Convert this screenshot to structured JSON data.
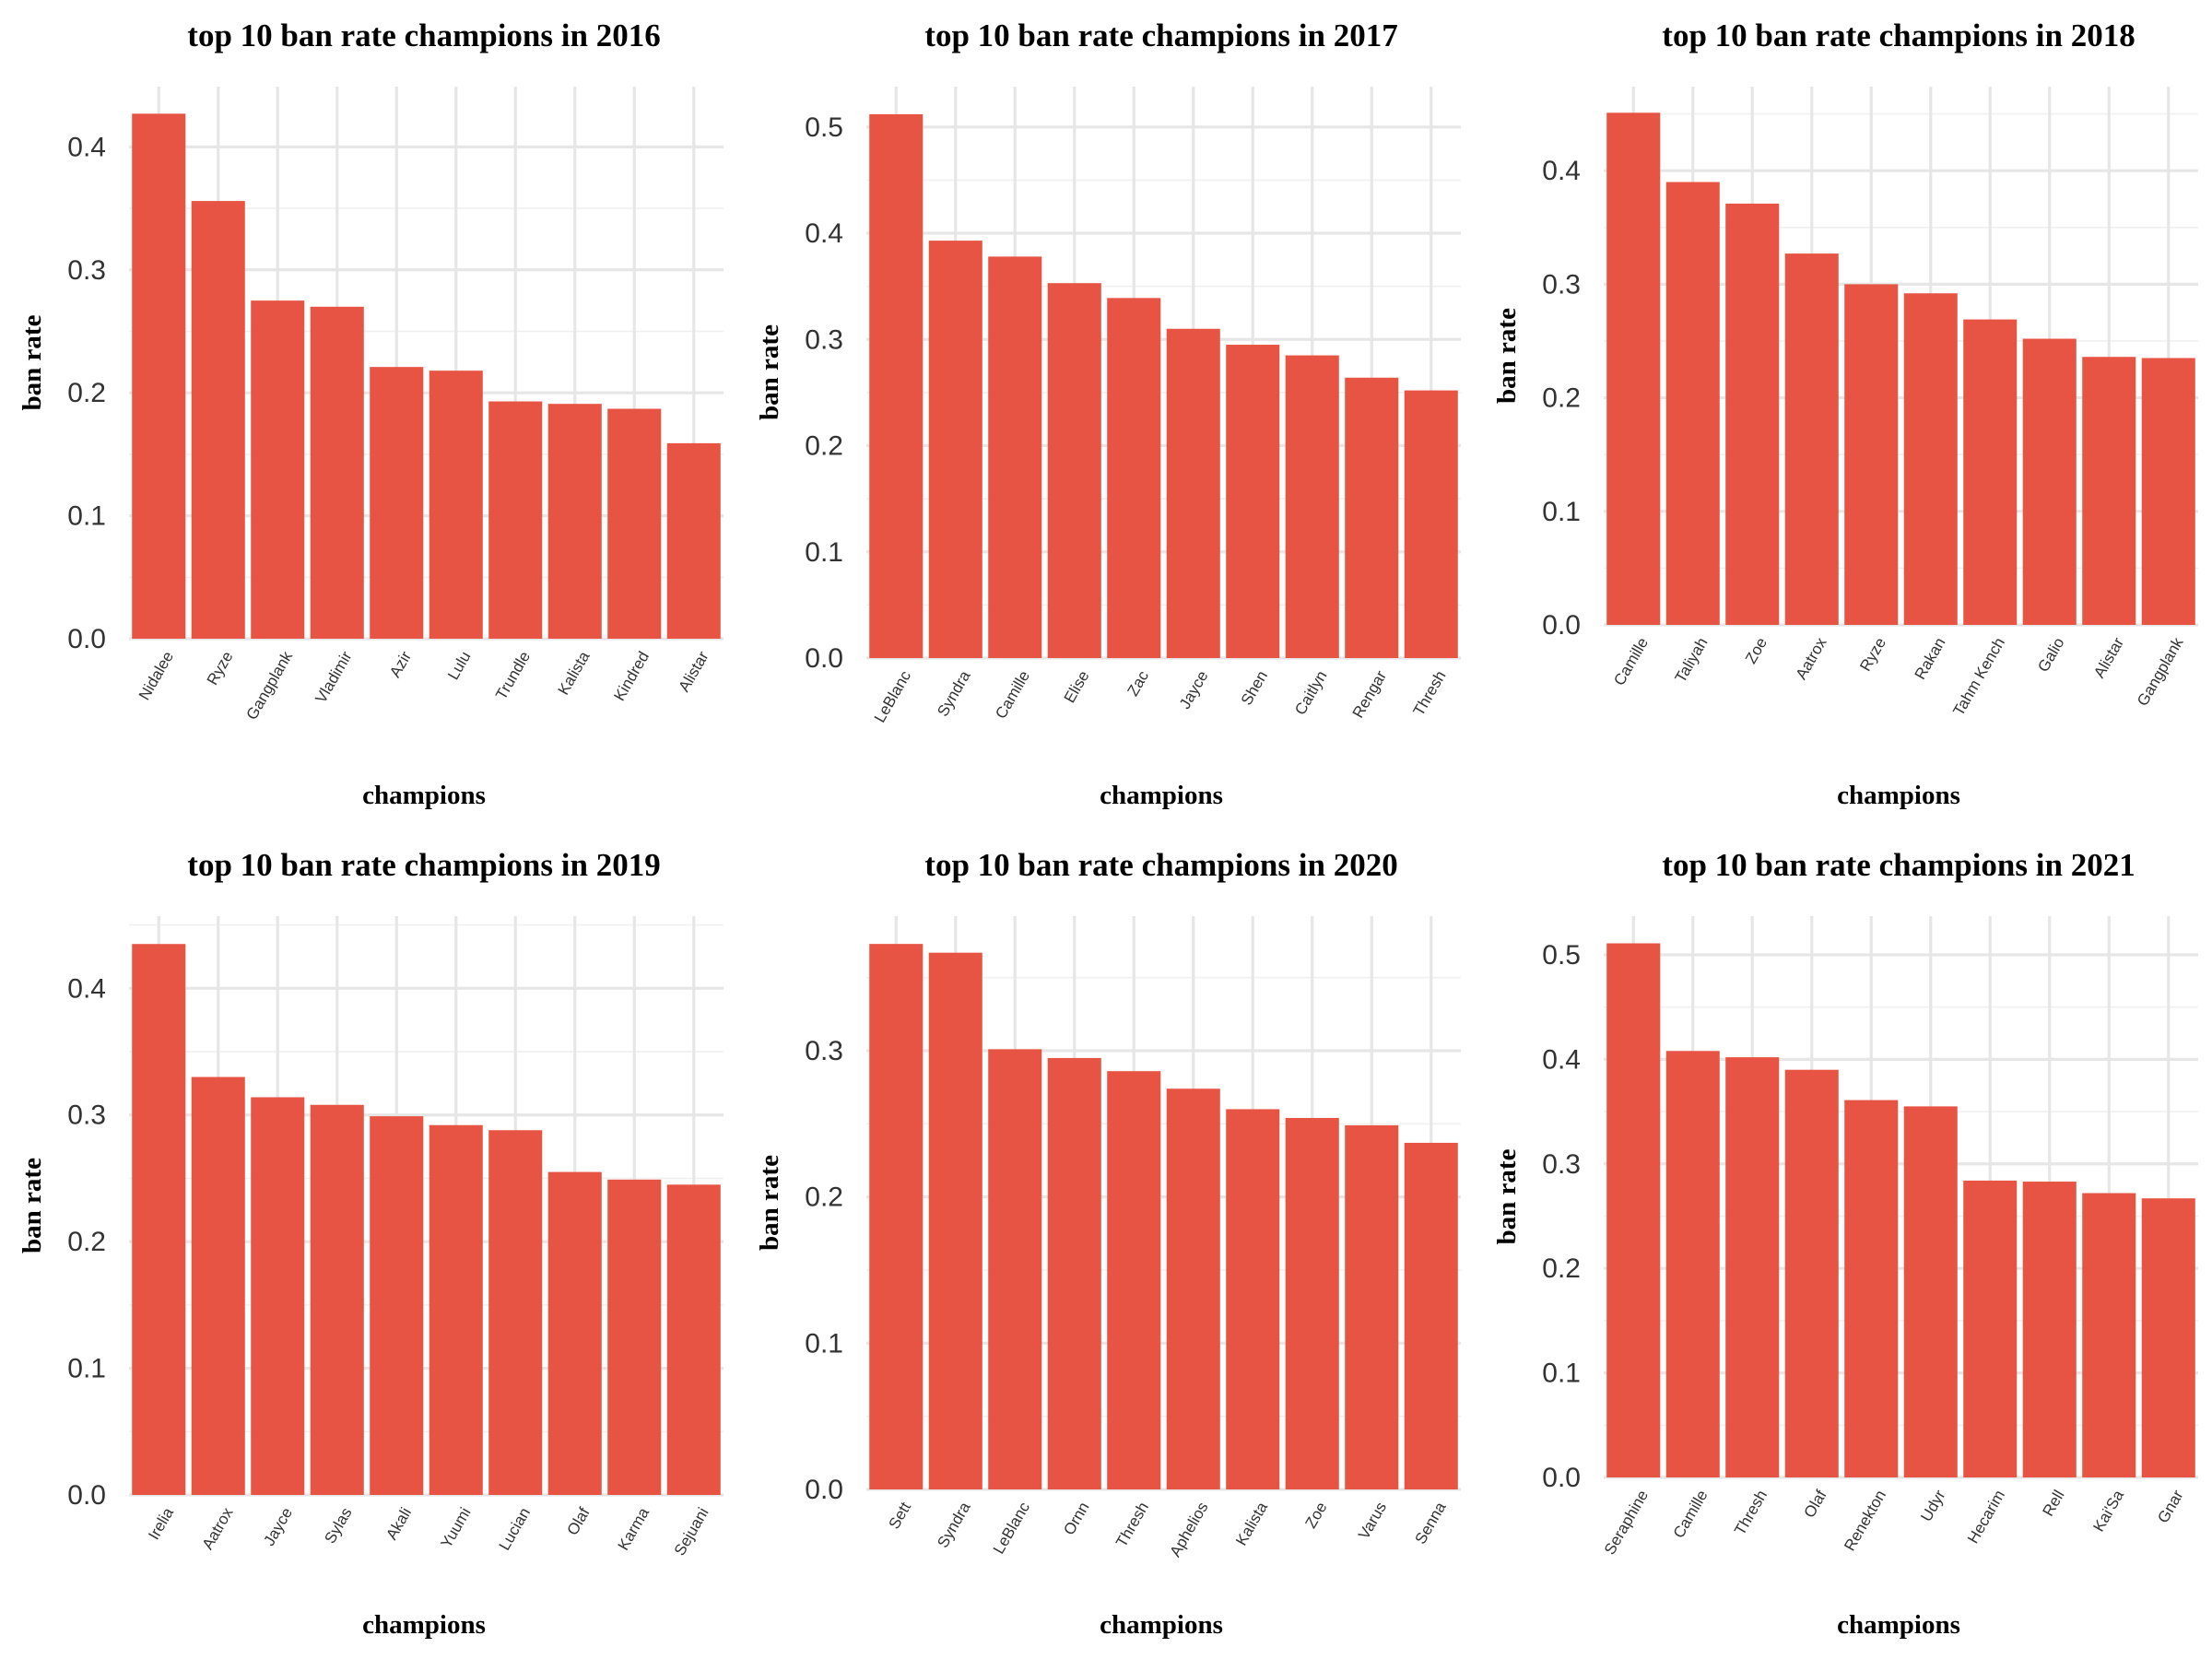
{
  "colors": {
    "bar": "#e85443",
    "grid_major": "#e6e6e6",
    "grid_minor": "#f0f0f0"
  },
  "chart_data": [
    {
      "type": "bar",
      "title": "top 10 ban rate champions in 2016",
      "xlabel": "champions",
      "ylabel": "ban rate",
      "categories": [
        "Nidalee",
        "Ryze",
        "Gangplank",
        "Vladimir",
        "Azir",
        "Lulu",
        "Trundle",
        "Kalista",
        "Kindred",
        "Alistar"
      ],
      "values": [
        0.427,
        0.356,
        0.275,
        0.27,
        0.221,
        0.218,
        0.193,
        0.191,
        0.187,
        0.159
      ],
      "yticks": [
        0.0,
        0.1,
        0.2,
        0.3,
        0.4
      ],
      "ytick_labels": [
        "0.0",
        "0.1",
        "0.2",
        "0.3",
        "0.4"
      ],
      "ylim": [
        0,
        0.449
      ],
      "grid": true
    },
    {
      "type": "bar",
      "title": "top 10 ban rate champions in 2017",
      "xlabel": "champions",
      "ylabel": "ban rate",
      "categories": [
        "LeBlanc",
        "Syndra",
        "Camille",
        "Elise",
        "Zac",
        "Jayce",
        "Shen",
        "Caitlyn",
        "Rengar",
        "Thresh"
      ],
      "values": [
        0.512,
        0.393,
        0.378,
        0.353,
        0.339,
        0.31,
        0.295,
        0.285,
        0.264,
        0.252
      ],
      "yticks": [
        0.0,
        0.1,
        0.2,
        0.3,
        0.4,
        0.5
      ],
      "ytick_labels": [
        "0.0",
        "0.1",
        "0.2",
        "0.3",
        "0.4",
        "0.5"
      ],
      "ylim": [
        0,
        0.538
      ],
      "grid": true
    },
    {
      "type": "bar",
      "title": "top 10 ban rate champions in 2018",
      "xlabel": "champions",
      "ylabel": "ban rate",
      "categories": [
        "Camille",
        "Taliyah",
        "Zoe",
        "Aatrox",
        "Ryze",
        "Rakan",
        "Tahm Kench",
        "Galio",
        "Alistar",
        "Gangplank"
      ],
      "values": [
        0.451,
        0.39,
        0.371,
        0.327,
        0.3,
        0.292,
        0.269,
        0.252,
        0.236,
        0.235
      ],
      "yticks": [
        0.0,
        0.1,
        0.2,
        0.3,
        0.4
      ],
      "ytick_labels": [
        "0.0",
        "0.1",
        "0.2",
        "0.3",
        "0.4"
      ],
      "ylim": [
        0,
        0.474
      ],
      "grid": true
    },
    {
      "type": "bar",
      "title": "top 10 ban rate champions in 2019",
      "xlabel": "champions",
      "ylabel": "ban rate",
      "categories": [
        "Irelia",
        "Aatrox",
        "Jayce",
        "Sylas",
        "Akali",
        "Yuumi",
        "Lucian",
        "Olaf",
        "Karma",
        "Sejuani"
      ],
      "values": [
        0.435,
        0.33,
        0.314,
        0.308,
        0.299,
        0.292,
        0.288,
        0.255,
        0.249,
        0.245
      ],
      "yticks": [
        0.0,
        0.1,
        0.2,
        0.3,
        0.4
      ],
      "ytick_labels": [
        "0.0",
        "0.1",
        "0.2",
        "0.3",
        "0.4"
      ],
      "ylim": [
        0,
        0.457
      ],
      "grid": true
    },
    {
      "type": "bar",
      "title": "top 10 ban rate champions in 2020",
      "xlabel": "champions",
      "ylabel": "ban rate",
      "categories": [
        "Sett",
        "Syndra",
        "LeBlanc",
        "Ornn",
        "Thresh",
        "Aphelios",
        "Kalista",
        "Zoe",
        "Varus",
        "Senna"
      ],
      "values": [
        0.373,
        0.367,
        0.301,
        0.295,
        0.286,
        0.274,
        0.26,
        0.254,
        0.249,
        0.237
      ],
      "yticks": [
        0.0,
        0.1,
        0.2,
        0.3
      ],
      "ytick_labels": [
        "0.0",
        "0.1",
        "0.2",
        "0.3"
      ],
      "ylim": [
        0,
        0.392
      ],
      "grid": true
    },
    {
      "type": "bar",
      "title": "top 10 ban rate champions in 2021",
      "xlabel": "champions",
      "ylabel": "ban rate",
      "categories": [
        "Seraphine",
        "Camille",
        "Thresh",
        "Olaf",
        "Renekton",
        "Udyr",
        "Hecarim",
        "Rell",
        "Kai'Sa",
        "Gnar"
      ],
      "values": [
        0.511,
        0.408,
        0.402,
        0.39,
        0.361,
        0.355,
        0.284,
        0.283,
        0.272,
        0.267
      ],
      "yticks": [
        0.0,
        0.1,
        0.2,
        0.3,
        0.4,
        0.5
      ],
      "ytick_labels": [
        "0.0",
        "0.1",
        "0.2",
        "0.3",
        "0.4",
        "0.5"
      ],
      "ylim": [
        0,
        0.537
      ],
      "grid": true
    }
  ]
}
